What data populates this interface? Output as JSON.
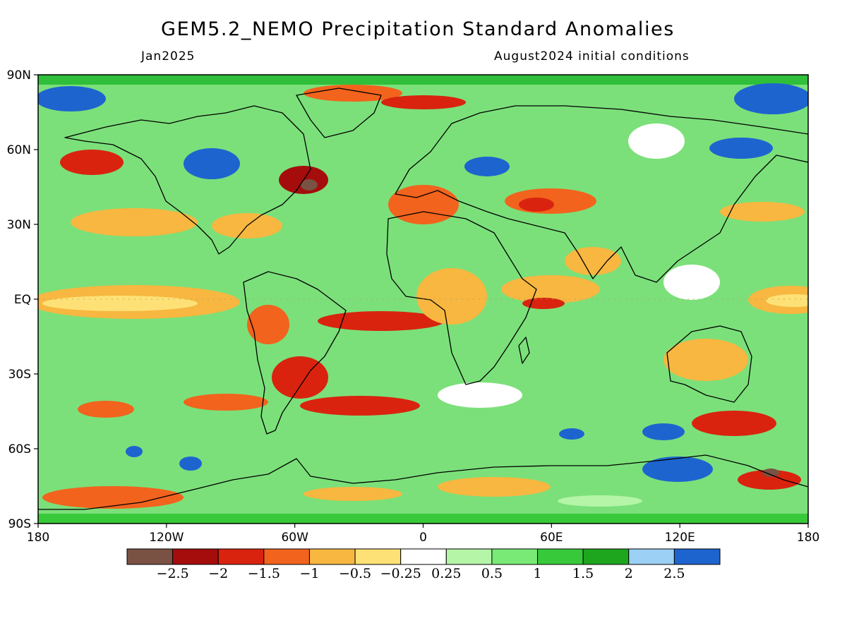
{
  "title": "GEM5.2_NEMO Precipitation Standard Anomalies",
  "valid_month": "Jan2025",
  "initial_conditions": "August2024 initial conditions",
  "lat_labels": [
    "90N",
    "60N",
    "30N",
    "EQ",
    "30S",
    "60S",
    "90S"
  ],
  "lon_labels": [
    "180",
    "120W",
    "60W",
    "0",
    "60E",
    "120E",
    "180"
  ],
  "colorbar": {
    "colors": [
      "#7a5244",
      "#a50d0d",
      "#d9230f",
      "#f2631d",
      "#f7b740",
      "#fde176",
      "#ffffff",
      "#b4f5a8",
      "#78ea75",
      "#38c93a",
      "#1fa61f",
      "#9cd0f5",
      "#1e64cf"
    ],
    "labels": [
      "-2.5",
      "-2",
      "-1.5",
      "-1",
      "-0.5",
      "-0.25",
      "0.25",
      "0.5",
      "1",
      "1.5",
      "2",
      "2.5"
    ]
  },
  "field_colors": {
    "base": "#7be07a",
    "green_dark": "#2fbf3a",
    "green_mid": "#5fd95f",
    "green_light": "#b4f5a8",
    "white": "#ffffff",
    "yellow": "#fde176",
    "orange_light": "#f7b740",
    "orange": "#f2631d",
    "red": "#d9230f",
    "red_dark": "#a50d0d",
    "brown": "#7a5244",
    "blue_light": "#9cd0f5",
    "blue": "#1e64cf",
    "coast": "#000000"
  }
}
